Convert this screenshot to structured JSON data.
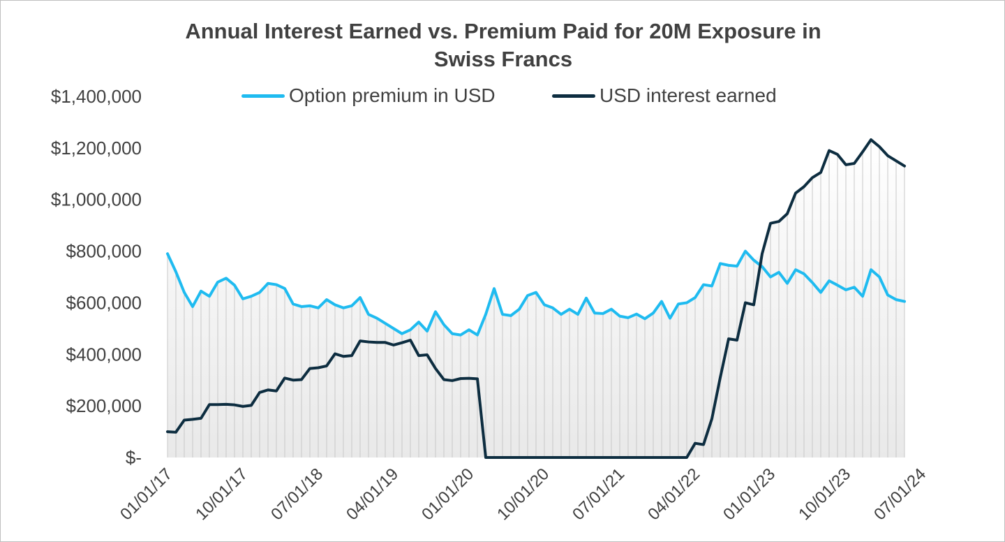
{
  "chart_data": {
    "type": "line",
    "title_lines": [
      "Annual Interest Earned vs. Premium Paid for 20M Exposure in",
      "Swiss Francs"
    ],
    "ylim": [
      0,
      1400000
    ],
    "y_ticks": [
      {
        "value": 0,
        "label": "$-"
      },
      {
        "value": 200000,
        "label": "$200,000"
      },
      {
        "value": 400000,
        "label": "$400,000"
      },
      {
        "value": 600000,
        "label": "$600,000"
      },
      {
        "value": 800000,
        "label": "$800,000"
      },
      {
        "value": 1000000,
        "label": "$1,000,000"
      },
      {
        "value": 1200000,
        "label": "$1,200,000"
      },
      {
        "value": 1400000,
        "label": "$1,400,000"
      }
    ],
    "x_ticks": [
      "01/01/17",
      "10/01/17",
      "07/01/18",
      "04/01/19",
      "01/01/20",
      "10/01/20",
      "07/01/21",
      "04/01/22",
      "01/01/23",
      "10/01/23",
      "07/01/24"
    ],
    "x_range": [
      "2017-01",
      "2024-07"
    ],
    "x_first": "2017-01",
    "legend_position": "top",
    "grid": false,
    "series": [
      {
        "name": "Option premium in USD",
        "color": "#1fbbf0",
        "values": [
          790000,
          720000,
          640000,
          585000,
          645000,
          625000,
          680000,
          695000,
          668000,
          615000,
          625000,
          640000,
          675000,
          670000,
          655000,
          595000,
          585000,
          588000,
          580000,
          612000,
          592000,
          580000,
          588000,
          620000,
          555000,
          540000,
          520000,
          500000,
          480000,
          495000,
          525000,
          490000,
          565000,
          515000,
          480000,
          475000,
          495000,
          475000,
          555000,
          655000,
          555000,
          550000,
          575000,
          628000,
          640000,
          592000,
          580000,
          555000,
          575000,
          555000,
          618000,
          560000,
          558000,
          575000,
          548000,
          542000,
          556000,
          538000,
          560000,
          605000,
          540000,
          595000,
          600000,
          620000,
          670000,
          665000,
          752000,
          745000,
          742000,
          800000,
          765000,
          740000,
          700000,
          718000,
          675000,
          728000,
          712000,
          678000,
          640000,
          685000,
          668000,
          650000,
          660000,
          625000,
          728000,
          700000,
          630000,
          612000,
          605000
        ],
        "x_last": "2024-05"
      },
      {
        "name": "USD interest earned",
        "color": "#0d2d40",
        "values": [
          100000,
          98000,
          145000,
          148000,
          152000,
          205000,
          205000,
          206000,
          204000,
          198000,
          202000,
          252000,
          262000,
          258000,
          308000,
          300000,
          302000,
          345000,
          348000,
          355000,
          402000,
          392000,
          395000,
          452000,
          448000,
          446000,
          446000,
          436000,
          445000,
          455000,
          395000,
          398000,
          345000,
          302000,
          298000,
          306000,
          307000,
          305000,
          0,
          0,
          0,
          0,
          0,
          0,
          0,
          0,
          0,
          0,
          0,
          0,
          0,
          0,
          0,
          0,
          0,
          0,
          0,
          0,
          0,
          0,
          0,
          0,
          0,
          55000,
          50000,
          150000,
          310000,
          460000,
          455000,
          600000,
          592000,
          790000,
          908000,
          915000,
          945000,
          1025000,
          1050000,
          1085000,
          1105000,
          1190000,
          1175000,
          1135000,
          1140000,
          1185000,
          1232000,
          1205000,
          1170000,
          1150000,
          1130000
        ],
        "x_last": "2024-05"
      }
    ]
  }
}
